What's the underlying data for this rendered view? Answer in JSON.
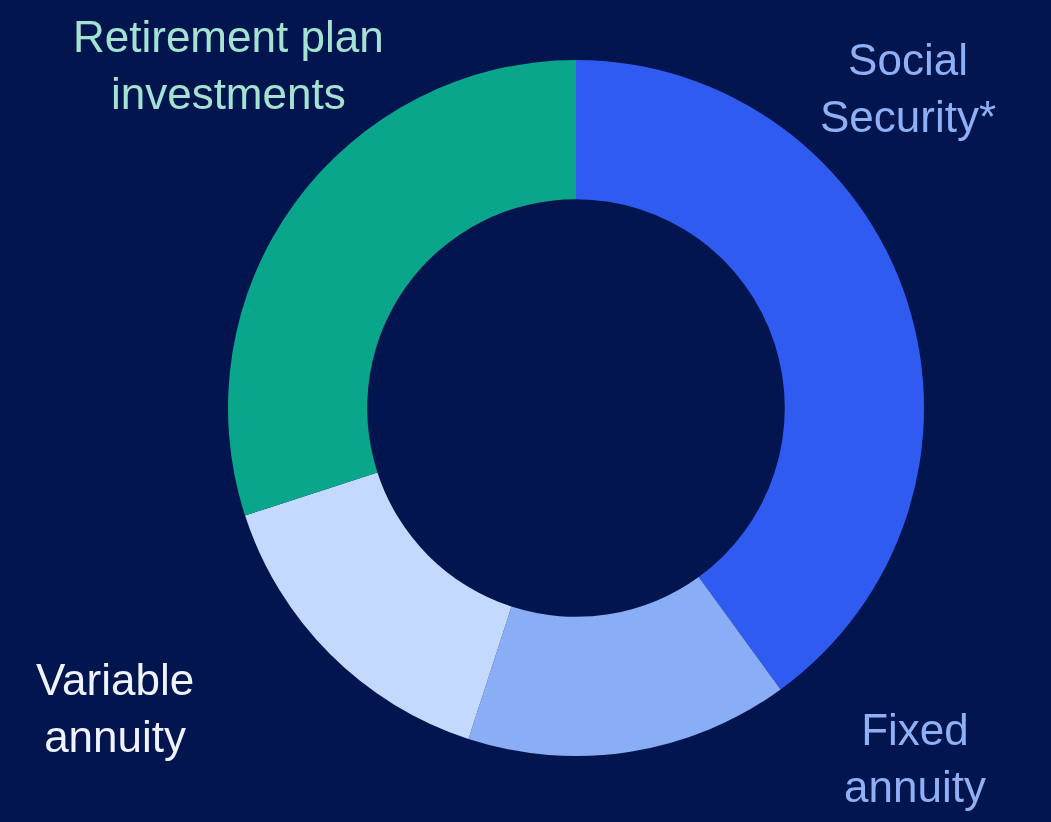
{
  "chart_data": {
    "type": "donut",
    "categories": [
      "Social\nSecurity*",
      "Fixed\nannuity",
      "Variable\nannuity",
      "Retirement plan\ninvestments"
    ],
    "values": [
      40,
      15,
      15,
      30
    ],
    "colors": [
      "#2f5bf0",
      "#8aaef5",
      "#c3d9fd",
      "#0aa68c"
    ],
    "legend": false
  }
}
